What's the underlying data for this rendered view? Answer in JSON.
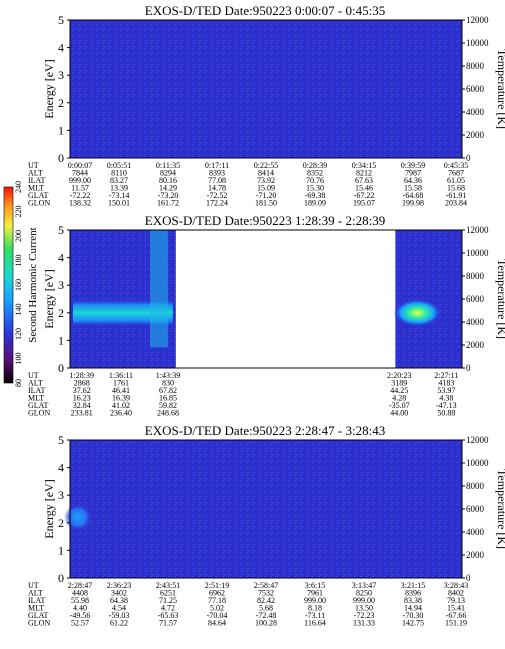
{
  "chart_data": [
    {
      "type": "heatmap",
      "title": "EXOS-D/TED   Date:950223   0:00:07 - 0:45:35",
      "ylabel": "Energy [eV]",
      "y2label": "Temperature [K]",
      "ylim": [
        0,
        5
      ],
      "y2lim": [
        0,
        12000
      ],
      "yticks": [
        0,
        1,
        2,
        3,
        4,
        5
      ],
      "y2ticks": [
        0,
        2000,
        4000,
        6000,
        8000,
        10000,
        12000
      ],
      "data_segments": [
        [
          0,
          1
        ]
      ],
      "bright_band": null,
      "orbit_table": {
        "row_labels": [
          "UT",
          "ALT",
          "ILAT",
          "MLT",
          "GLAT",
          "GLON"
        ],
        "columns": [
          [
            "0:00:07",
            "7844",
            "999.00",
            "11.57",
            "-72.22",
            "138.32"
          ],
          [
            "0:05:51",
            "8110",
            "83.27",
            "13.39",
            "-73.14",
            "150.01"
          ],
          [
            "0:11:35",
            "8294",
            "80.16",
            "14.29",
            "-73.20",
            "161.72"
          ],
          [
            "0:17:11",
            "8393",
            "77.08",
            "14.78",
            "-72.52",
            "172.24"
          ],
          [
            "0:22:55",
            "8414",
            "73.92",
            "15.09",
            "-71.20",
            "181.50"
          ],
          [
            "0:28:39",
            "8352",
            "70.76",
            "15.30",
            "-69.38",
            "189.09"
          ],
          [
            "0:34:15",
            "8212",
            "67.63",
            "15.46",
            "-67.22",
            "195.07"
          ],
          [
            "0:39:59",
            "7987",
            "64.36",
            "15.58",
            "-64.68",
            "199.98"
          ],
          [
            "0:45:35",
            "7687",
            "61.05",
            "15.68",
            "-61.91",
            "203.84"
          ]
        ]
      }
    },
    {
      "type": "heatmap",
      "title": "EXOS-D/TED   Date:950223   1:28:39 - 2:28:39",
      "ylabel": "Energy [eV]",
      "y2label": "Temperature [K]",
      "ylim": [
        0,
        5
      ],
      "y2lim": [
        0,
        12000
      ],
      "yticks": [
        0,
        1,
        2,
        3,
        4,
        5
      ],
      "y2ticks": [
        0,
        2000,
        4000,
        6000,
        8000,
        10000,
        12000
      ],
      "data_segments": [
        [
          0,
          0.27
        ],
        [
          0.83,
          1
        ]
      ],
      "bright_band": [
        1.5,
        2.5
      ],
      "orbit_table": {
        "row_labels": [
          "UT",
          "ALT",
          "ILAT",
          "MLT",
          "GLAT",
          "GLON"
        ],
        "columns": [
          [
            "1:28:39",
            "2868",
            "37.62",
            "16.23",
            "32.84",
            "233.81"
          ],
          [
            "1:36:11",
            "1761",
            "46.41",
            "16.39",
            "41.02",
            "236.40"
          ],
          [
            "1:43:39",
            "830",
            "67.82",
            "16.85",
            "59.82",
            "248.68"
          ],
          [
            "2:20:23",
            "3189",
            "44.25",
            "4.28",
            "-35.07",
            "44.00"
          ],
          [
            "2:27:11",
            "4183",
            "53.97",
            "4.38",
            "-47.13",
            "50.88"
          ]
        ]
      },
      "colorbar": {
        "label": "Second Harmonic Current",
        "ticks": [
          "240",
          "220",
          "200",
          "180",
          "160",
          "140",
          "120",
          "100",
          "80"
        ]
      }
    },
    {
      "type": "heatmap",
      "title": "EXOS-D/TED   Date:950223   2:28:47 - 3:28:43",
      "ylabel": "Energy [eV]",
      "y2label": "Temperature [K]",
      "ylim": [
        0,
        5
      ],
      "y2lim": [
        0,
        12000
      ],
      "yticks": [
        0,
        1,
        2,
        3,
        4,
        5
      ],
      "y2ticks": [
        0,
        2000,
        4000,
        6000,
        8000,
        10000,
        12000
      ],
      "data_segments": [
        [
          0,
          1
        ]
      ],
      "bright_band": [
        1.7,
        2.7
      ],
      "orbit_table": {
        "row_labels": [
          "UT",
          "ALT",
          "ILAT",
          "MLT",
          "GLAT",
          "GLON"
        ],
        "columns": [
          [
            "2:28:47",
            "4408",
            "55.98",
            "4.40",
            "-49.56",
            "52.57"
          ],
          [
            "2:36:23",
            "3402",
            "64.38",
            "4.54",
            "-59.03",
            "61.22"
          ],
          [
            "2:43:51",
            "6251",
            "71.25",
            "4.72",
            "-65.63",
            "71.57"
          ],
          [
            "2:51:19",
            "6962",
            "77.18",
            "5.02",
            "-70.04",
            "84.64"
          ],
          [
            "2:58:47",
            "7532",
            "82.42",
            "5.68",
            "-72.48",
            "100.28"
          ],
          [
            "3:6:15",
            "7961",
            "999.00",
            "8.18",
            "-73.11",
            "116.64"
          ],
          [
            "3:13:47",
            "8250",
            "999.00",
            "13.50",
            "-72.23",
            "131.33"
          ],
          [
            "3:21:15",
            "8396",
            "83.38",
            "14.94",
            "-70.30",
            "142.75"
          ],
          [
            "3:28:43",
            "8402",
            "79.13",
            "15.41",
            "-67.66",
            "151.19"
          ]
        ]
      }
    }
  ]
}
